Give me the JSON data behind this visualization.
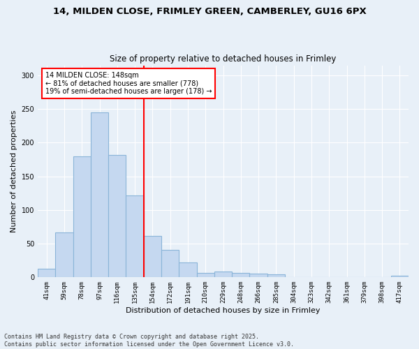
{
  "title1": "14, MILDEN CLOSE, FRIMLEY GREEN, CAMBERLEY, GU16 6PX",
  "title2": "Size of property relative to detached houses in Frimley",
  "xlabel": "Distribution of detached houses by size in Frimley",
  "ylabel": "Number of detached properties",
  "categories": [
    "41sqm",
    "59sqm",
    "78sqm",
    "97sqm",
    "116sqm",
    "135sqm",
    "154sqm",
    "172sqm",
    "191sqm",
    "210sqm",
    "229sqm",
    "248sqm",
    "266sqm",
    "285sqm",
    "304sqm",
    "323sqm",
    "342sqm",
    "361sqm",
    "379sqm",
    "398sqm",
    "417sqm"
  ],
  "values": [
    13,
    67,
    180,
    245,
    182,
    122,
    62,
    41,
    22,
    7,
    9,
    7,
    6,
    4,
    0,
    0,
    0,
    0,
    0,
    0,
    2
  ],
  "bar_color": "#c5d8f0",
  "bar_edge_color": "#8ab4d8",
  "vline_x": 5.5,
  "vline_color": "red",
  "annotation_text": "14 MILDEN CLOSE: 148sqm\n← 81% of detached houses are smaller (778)\n19% of semi-detached houses are larger (178) →",
  "annotation_box_color": "white",
  "annotation_box_edge": "red",
  "ylim": [
    0,
    315
  ],
  "yticks": [
    0,
    50,
    100,
    150,
    200,
    250,
    300
  ],
  "background_color": "#e8f0f8",
  "footer": "Contains HM Land Registry data © Crown copyright and database right 2025.\nContains public sector information licensed under the Open Government Licence v3.0.",
  "title_fontsize": 9.5,
  "subtitle_fontsize": 8.5,
  "axis_fontsize": 8,
  "tick_fontsize": 6.5,
  "footer_fontsize": 6,
  "annotation_fontsize": 7
}
